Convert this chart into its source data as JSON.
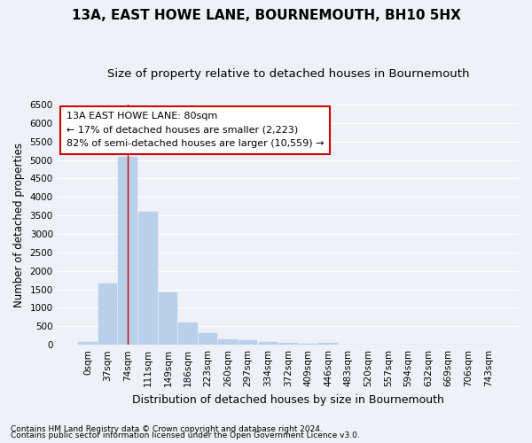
{
  "title": "13A, EAST HOWE LANE, BOURNEMOUTH, BH10 5HX",
  "subtitle": "Size of property relative to detached houses in Bournemouth",
  "xlabel": "Distribution of detached houses by size in Bournemouth",
  "ylabel": "Number of detached properties",
  "footnote1": "Contains HM Land Registry data © Crown copyright and database right 2024.",
  "footnote2": "Contains public sector information licensed under the Open Government Licence v3.0.",
  "bar_labels": [
    "0sqm",
    "37sqm",
    "74sqm",
    "111sqm",
    "149sqm",
    "186sqm",
    "223sqm",
    "260sqm",
    "297sqm",
    "334sqm",
    "372sqm",
    "409sqm",
    "446sqm",
    "483sqm",
    "520sqm",
    "557sqm",
    "594sqm",
    "632sqm",
    "669sqm",
    "706sqm",
    "743sqm"
  ],
  "bar_values": [
    75,
    1650,
    5080,
    3600,
    1420,
    610,
    305,
    160,
    125,
    80,
    50,
    30,
    55,
    0,
    0,
    0,
    0,
    0,
    0,
    0,
    0
  ],
  "bar_color": "#b8d0ea",
  "bar_edge_color": "#b8d0ea",
  "vline_x_index": 2,
  "vline_color": "#cc0000",
  "ylim": [
    0,
    6500
  ],
  "yticks": [
    0,
    500,
    1000,
    1500,
    2000,
    2500,
    3000,
    3500,
    4000,
    4500,
    5000,
    5500,
    6000,
    6500
  ],
  "annotation_line1": "13A EAST HOWE LANE: 80sqm",
  "annotation_line2": "← 17% of detached houses are smaller (2,223)",
  "annotation_line3": "82% of semi-detached houses are larger (10,559) →",
  "annotation_box_color": "#ffffff",
  "annotation_box_edge": "#cc0000",
  "bg_color": "#eef2f8",
  "grid_color": "#ffffff",
  "title_fontsize": 11,
  "subtitle_fontsize": 9.5,
  "xlabel_fontsize": 9,
  "ylabel_fontsize": 8.5,
  "tick_fontsize": 7.5,
  "annot_fontsize": 8,
  "footnote_fontsize": 6.5
}
